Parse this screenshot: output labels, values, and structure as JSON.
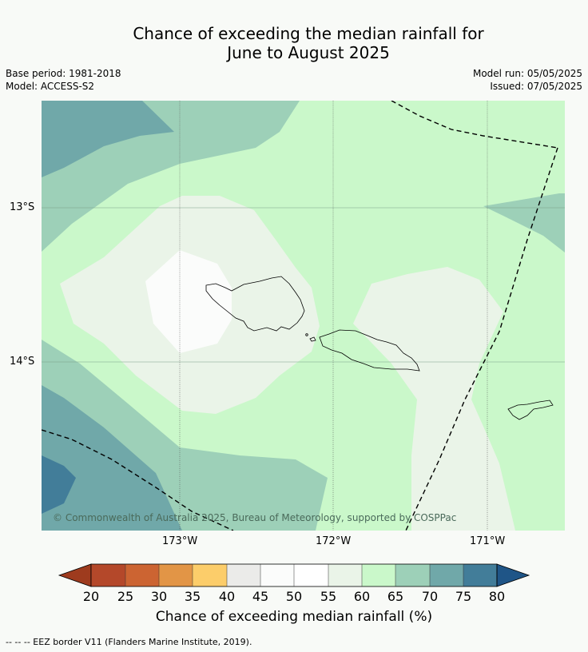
{
  "title_line1": "Chance of exceeding the median rainfall for",
  "title_line2": "June to August 2025",
  "base_period": "Base period: 1981-2018",
  "model": "Model: ACCESS-S2",
  "model_run": "Model run: 05/05/2025",
  "issued": "Issued: 07/05/2025",
  "copyright": "© Commonwealth of Australia 2025, Bureau of Meteorology, supported by COSPPac",
  "lat_ticks": [
    "13°S",
    "14°S"
  ],
  "lon_ticks": [
    "173°W",
    "172°W",
    "171°W"
  ],
  "colorbar": {
    "title": "Chance of exceeding median rainfall (%)",
    "ticks": [
      "20",
      "25",
      "30",
      "35",
      "40",
      "45",
      "50",
      "55",
      "60",
      "65",
      "70",
      "75",
      "80"
    ],
    "colors": [
      "#9e3b1e",
      "#b4482a",
      "#cc6432",
      "#e29546",
      "#fccd6a",
      "#ebebe9",
      "#fbfcfb",
      "#ffffff",
      "#eaf4e8",
      "#caf8ca",
      "#9dd0b8",
      "#70a8a9",
      "#427d99",
      "#1f5587"
    ]
  },
  "footer": "--  --  -- EEZ border V11 (Flanders Marine Institute, 2019)."
}
